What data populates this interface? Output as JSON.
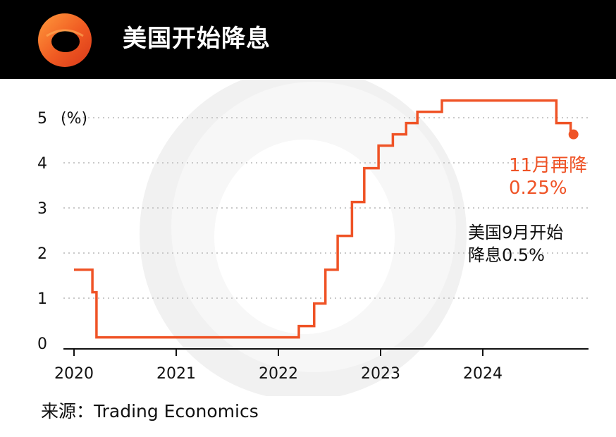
{
  "header": {
    "title": "美国开始降息"
  },
  "colors": {
    "header_bg": "#000000",
    "accent": "#ef5326",
    "grid": "#c9c9c9"
  },
  "annotations": {
    "nov_line1": "11月再降",
    "nov_line2": "0.25%",
    "sep_line1": "美国9月开始",
    "sep_line2": "降息0.5%"
  },
  "source": "来源：Trading Economics",
  "chart_data": {
    "type": "line",
    "step": true,
    "ylabel": "(%)",
    "ylim": [
      0,
      5
    ],
    "yticks": [
      "0",
      "1",
      "2",
      "3",
      "4",
      "5"
    ],
    "xlim": [
      2020.0,
      2025.0
    ],
    "xticks": [
      "2020",
      "2021",
      "2022",
      "2023",
      "2024"
    ],
    "grid": "horizontal-dotted",
    "series": [
      {
        "color": "#ef5326",
        "x": [
          2020.0,
          2020.18,
          2020.22,
          2022.2,
          2022.35,
          2022.46,
          2022.58,
          2022.72,
          2022.84,
          2022.98,
          2023.12,
          2023.25,
          2023.36,
          2023.6,
          2024.72,
          2024.86
        ],
        "y": [
          1.63,
          1.13,
          0.13,
          0.38,
          0.88,
          1.63,
          2.38,
          3.13,
          3.88,
          4.38,
          4.63,
          4.88,
          5.13,
          5.38,
          4.88,
          4.63
        ],
        "end_marker": true
      }
    ]
  }
}
